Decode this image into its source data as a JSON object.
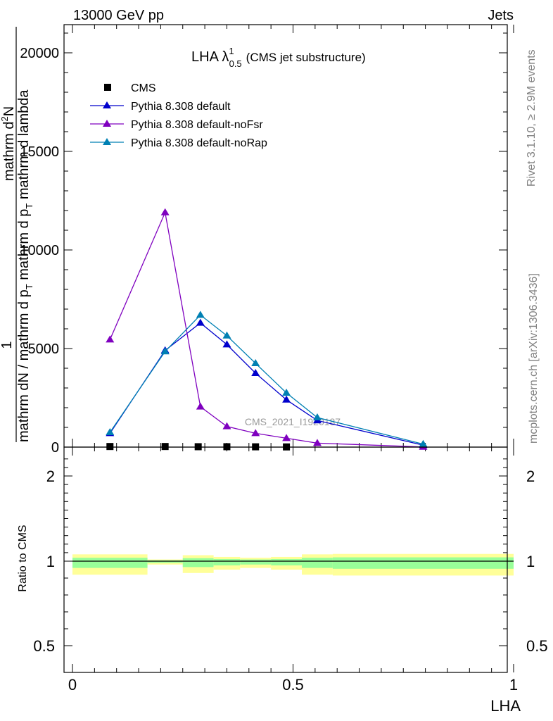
{
  "header": {
    "left": "13000 GeV pp",
    "right": "Jets"
  },
  "side_labels": {
    "rivet": "Rivet 3.1.10, ≥ 2.9M events",
    "mcplots": "mcplots.cern.ch [arXiv:1306.3436]"
  },
  "title": {
    "main": "LHA λ",
    "sup": "1",
    "sub": "0.5",
    "suffix": "(CMS jet substructure)"
  },
  "watermark": "CMS_2021_I1920187",
  "y_label_top": {
    "line1": "1",
    "line2": "mathrm d",
    "line2_sup": "2",
    "line2_rest": "N",
    "line3": "mathrm dN / mathrm d p",
    "line3_sub": "T",
    "line3_rest": " mathrm d p",
    "line3_sub2": "T",
    "line3_rest2": " mathrm d lambda"
  },
  "y_label_bottom": "Ratio to CMS",
  "x_label": "LHA",
  "legend": [
    {
      "label": "CMS",
      "marker": "square",
      "color": "#000000"
    },
    {
      "label": "Pythia 8.308 default",
      "marker": "triangle",
      "color": "#0000cc"
    },
    {
      "label": "Pythia 8.308 default-noFsr",
      "marker": "triangle",
      "color": "#7f00bf"
    },
    {
      "label": "Pythia 8.308 default-noRap",
      "marker": "triangle",
      "color": "#0080b3"
    }
  ],
  "chart_data": [
    {
      "type": "line",
      "panel": "main",
      "xlim": [
        0,
        1
      ],
      "ylim": [
        0,
        22000
      ],
      "y_ticks": [
        0,
        5000,
        10000,
        15000,
        20000
      ],
      "y_tick_labels": [
        "0",
        "5000",
        "10000",
        "15000",
        "20000"
      ],
      "series": [
        {
          "name": "CMS",
          "marker": "square",
          "color": "#000000",
          "x": [
            0.085,
            0.21,
            0.285,
            0.35,
            0.415,
            0.485
          ],
          "y": [
            30,
            30,
            20,
            20,
            15,
            10
          ]
        },
        {
          "name": "Pythia 8.308 default",
          "marker": "triangle",
          "color": "#0000cc",
          "x": [
            0.085,
            0.21,
            0.29,
            0.35,
            0.415,
            0.485,
            0.555,
            0.795
          ],
          "y": [
            700,
            4900,
            6300,
            5200,
            3750,
            2400,
            1350,
            100
          ]
        },
        {
          "name": "Pythia 8.308 default-noFsr",
          "marker": "triangle",
          "color": "#7f00bf",
          "x": [
            0.085,
            0.21,
            0.29,
            0.35,
            0.415,
            0.485,
            0.555,
            0.795
          ],
          "y": [
            5450,
            11900,
            2050,
            1050,
            700,
            450,
            200,
            10
          ]
        },
        {
          "name": "Pythia 8.308 default-noRap",
          "marker": "triangle",
          "color": "#0080b3",
          "x": [
            0.085,
            0.21,
            0.29,
            0.35,
            0.415,
            0.485,
            0.555,
            0.795
          ],
          "y": [
            750,
            4850,
            6700,
            5650,
            4250,
            2750,
            1500,
            150
          ]
        }
      ]
    },
    {
      "type": "area",
      "panel": "ratio",
      "xlim": [
        0,
        1
      ],
      "ylim": [
        0.4,
        2.3
      ],
      "y_ticks": [
        0.5,
        1,
        2
      ],
      "y_tick_labels": [
        "0.5",
        "1",
        "2"
      ],
      "x_ticks": [
        0,
        0.5,
        1
      ],
      "x_tick_labels": [
        "0",
        "0.5",
        "1"
      ],
      "reference_line": 1,
      "bands": [
        {
          "x0": 0.0,
          "x1": 0.17,
          "yellow": [
            0.92,
            1.08
          ],
          "green": [
            0.96,
            1.04
          ]
        },
        {
          "x0": 0.17,
          "x1": 0.25,
          "yellow": [
            0.98,
            1.02
          ],
          "green": [
            0.99,
            1.01
          ]
        },
        {
          "x0": 0.25,
          "x1": 0.32,
          "yellow": [
            0.93,
            1.07
          ],
          "green": [
            0.965,
            1.035
          ]
        },
        {
          "x0": 0.32,
          "x1": 0.38,
          "yellow": [
            0.95,
            1.05
          ],
          "green": [
            0.975,
            1.025
          ]
        },
        {
          "x0": 0.38,
          "x1": 0.45,
          "yellow": [
            0.96,
            1.04
          ],
          "green": [
            0.98,
            1.02
          ]
        },
        {
          "x0": 0.45,
          "x1": 0.52,
          "yellow": [
            0.95,
            1.05
          ],
          "green": [
            0.975,
            1.025
          ]
        },
        {
          "x0": 0.52,
          "x1": 0.59,
          "yellow": [
            0.92,
            1.08
          ],
          "green": [
            0.96,
            1.04
          ]
        },
        {
          "x0": 0.59,
          "x1": 1.0,
          "yellow": [
            0.915,
            1.085
          ],
          "green": [
            0.955,
            1.045
          ]
        }
      ],
      "band_colors": {
        "yellow": "#ffff99",
        "green": "#99ff99"
      }
    }
  ]
}
